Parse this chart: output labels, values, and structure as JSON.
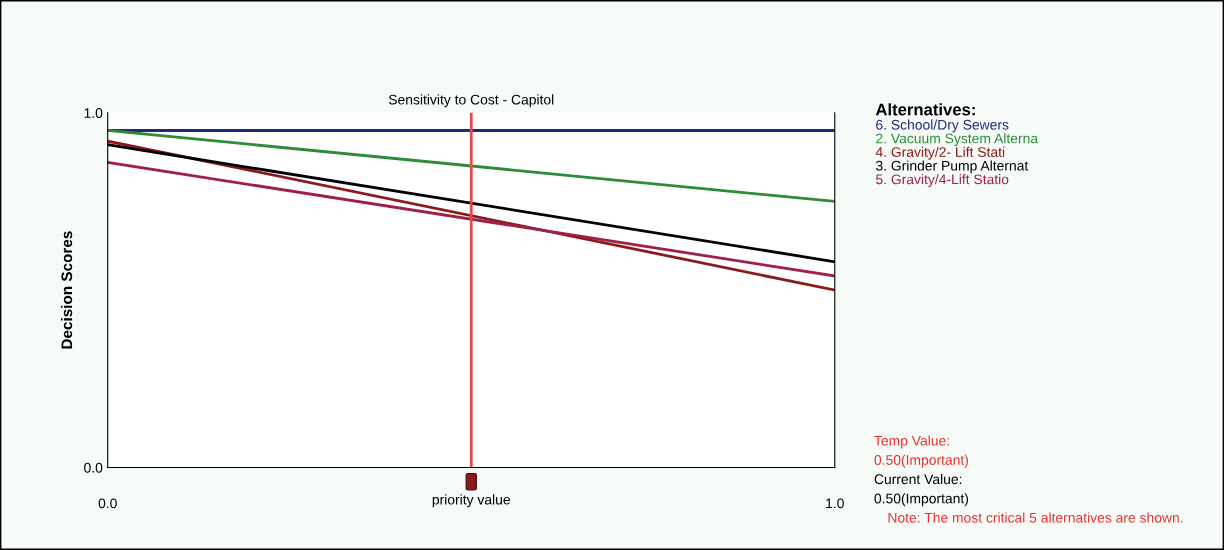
{
  "chart_data": {
    "type": "line",
    "title": "Sensitivity to Cost - Capitol",
    "xlabel": "priority value",
    "ylabel": "Decision Scores",
    "legend_title": "Alternatives:",
    "x": [
      0,
      1
    ],
    "series": [
      {
        "name": "6. School/Dry Sewers",
        "color": "#1f2a7a",
        "values": [
          0.95,
          0.95
        ]
      },
      {
        "name": "2. Vacuum System Alterna",
        "color": "#2e8b3a",
        "values": [
          0.95,
          0.75
        ]
      },
      {
        "name": "4. Gravity/2- Lift Stati",
        "color": "#8b1a1a",
        "values": [
          0.92,
          0.5
        ]
      },
      {
        "name": "3. Grinder Pump Alternat",
        "color": "#000000",
        "values": [
          0.91,
          0.58
        ]
      },
      {
        "name": "5. Gravity/4-Lift Statio",
        "color": "#a0204a",
        "values": [
          0.86,
          0.54
        ]
      }
    ],
    "xlim": [
      0,
      1
    ],
    "ylim": [
      0,
      1
    ],
    "xticks": [
      {
        "value": 0,
        "label": "0.0"
      },
      {
        "value": 1,
        "label": "1.0"
      }
    ],
    "yticks": [
      {
        "value": 0,
        "label": "0.0"
      },
      {
        "value": 1,
        "label": "1.0"
      }
    ],
    "ref_lines": [
      {
        "axis": "x",
        "value": 0.5,
        "color": "#e8474c"
      }
    ],
    "legend": "top right",
    "grid": false,
    "marker": "none",
    "line_style": "solid",
    "annotations": [
      "Temp Value:",
      "0.50(Important)",
      "Current Value:",
      "0.50(Important)",
      "Note: The most critical 5 alternatives are shown."
    ]
  }
}
